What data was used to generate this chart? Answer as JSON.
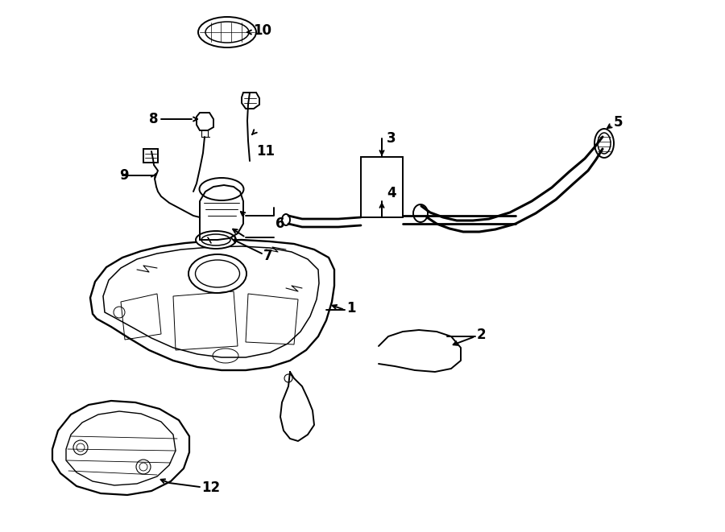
{
  "bg_color": "#ffffff",
  "line_color": "#000000",
  "figsize": [
    9.0,
    6.61
  ],
  "dpi": 100,
  "fs": 12,
  "lw": 1.4
}
